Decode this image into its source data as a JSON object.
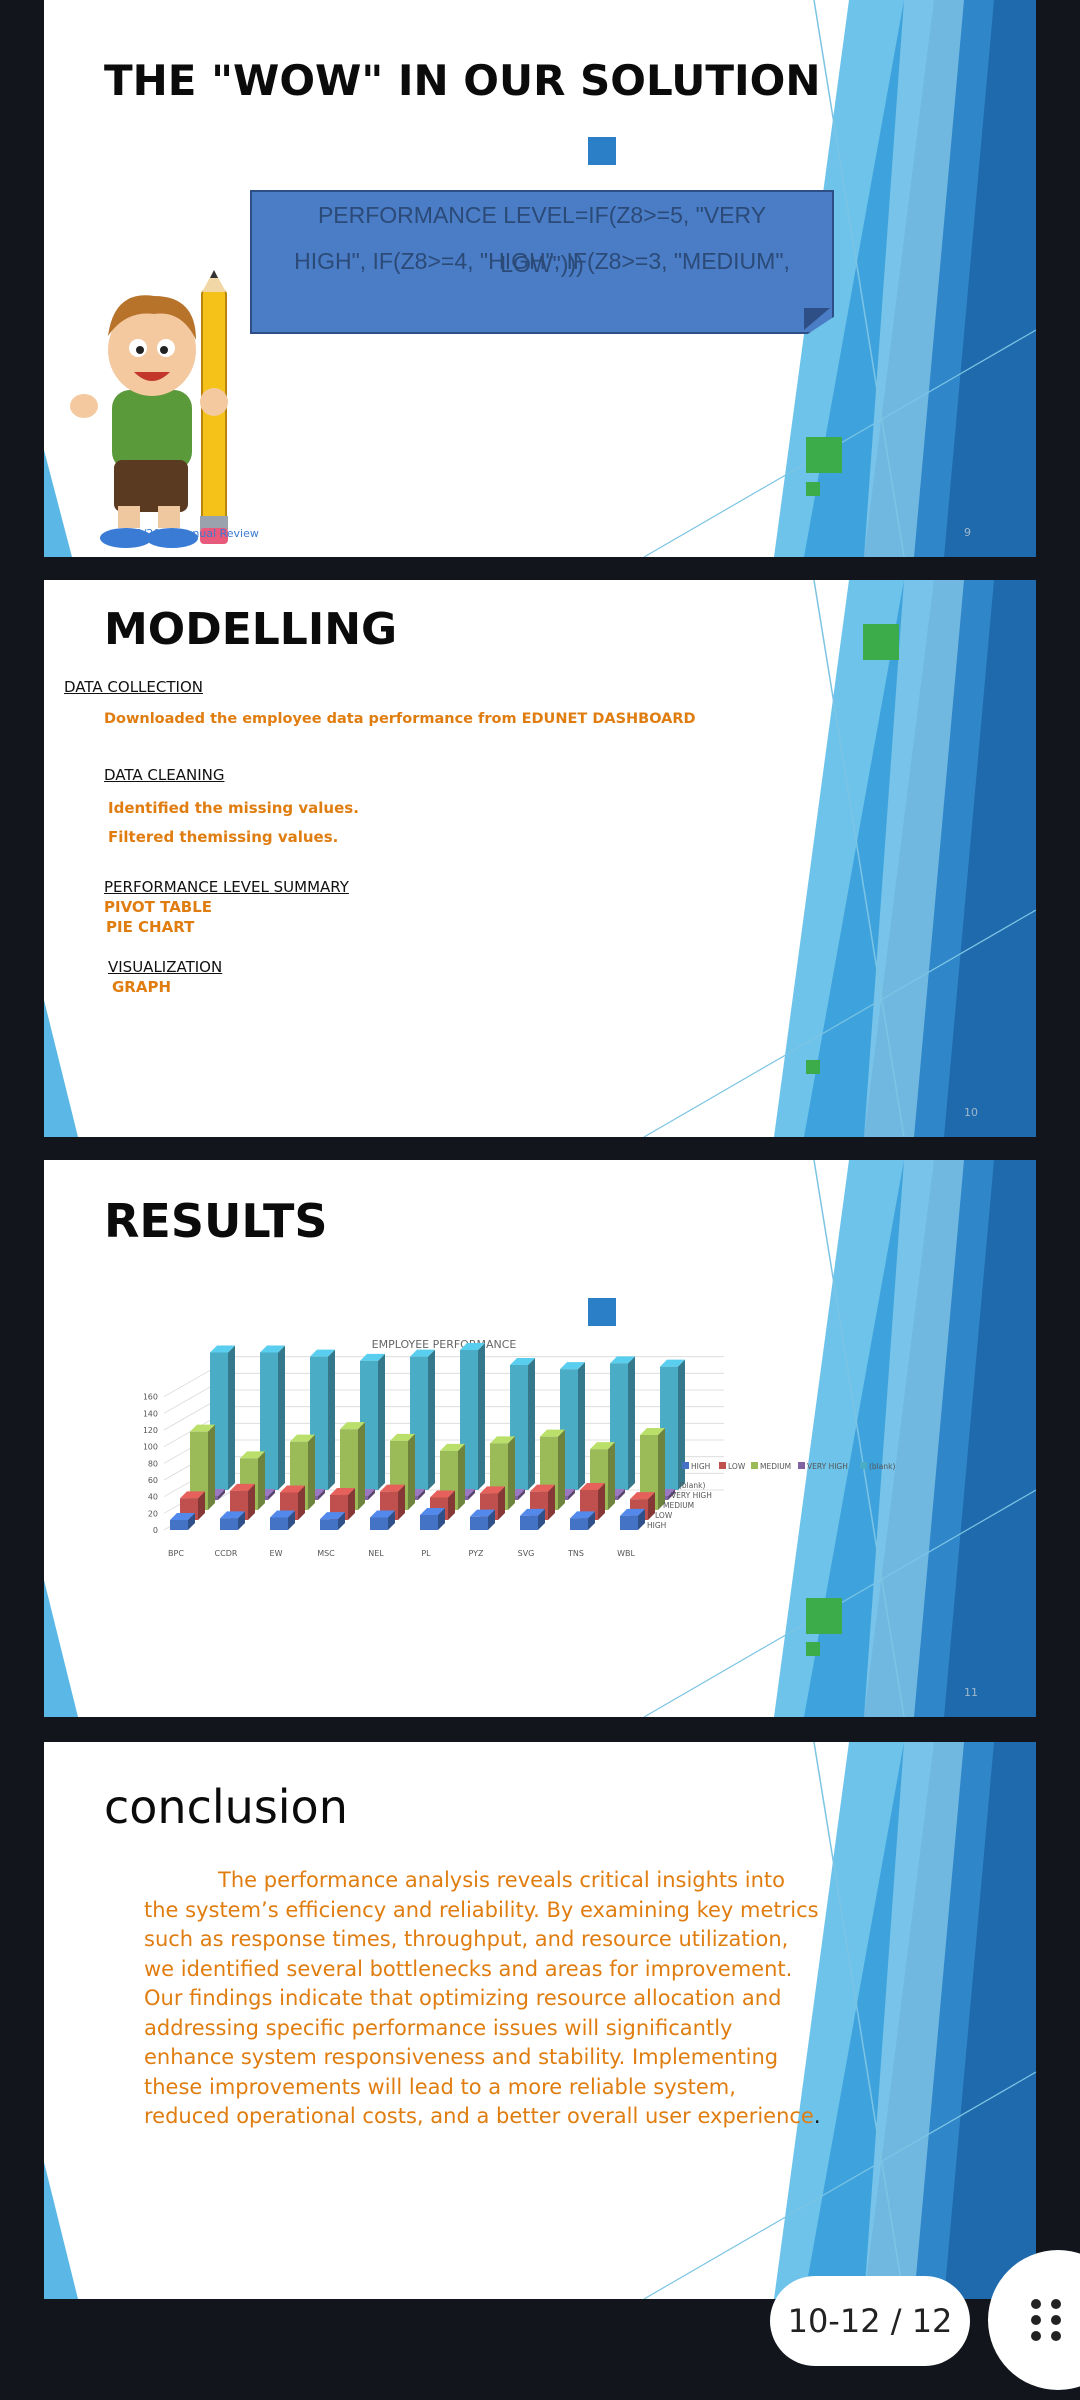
{
  "slides": [
    {
      "title": "THE \"WOW\" IN OUR SOLUTION",
      "formula_lines": [
        "PERFORMANCE LEVEL=IF(Z8>=5, \"VERY",
        "HIGH\", IF(Z8>=4, \"HIGH\", IF(Z8>=3, \"MEDIUM\",",
        "LOW\")))"
      ],
      "date_text": "3/21/2024 Annual Review",
      "slide_number": "9",
      "illustration": "cartoon-boy-with-pencil"
    },
    {
      "title": "MODELLING",
      "sections": [
        {
          "heading": "DATA COLLECTION",
          "items": [
            "Downloaded the employee data performance from EDUNET DASHBOARD"
          ]
        },
        {
          "heading": "DATA CLEANING",
          "items": [
            "Identified the missing values.",
            "Filtered themissing values."
          ]
        },
        {
          "heading": "PERFORMANCE LEVEL SUMMARY",
          "items": [
            "PIVOT TABLE",
            "PIE CHART"
          ]
        },
        {
          "heading": "VISUALIZATION",
          "items": [
            "GRAPH"
          ]
        }
      ],
      "slide_number": "10"
    },
    {
      "title": "RESULTS",
      "slide_number": "11"
    },
    {
      "title": "conclusion",
      "paragraph": "The performance analysis reveals critical insights into the system’s efficiency and reliability. By examining key metrics such as response times, throughput, and resource utilization, we identified several bottlenecks and areas for improvement. Our findings indicate that optimizing resource allocation and addressing specific performance issues will significantly enhance system responsiveness and stability. Implementing these improvements will lead to a more reliable system, reduced operational costs, and a better overall user experience",
      "end_mark": "."
    }
  ],
  "chart_data": {
    "type": "bar",
    "title": "EMPLOYEE PERFORMANCE",
    "categories": [
      "BPC",
      "CCDR",
      "EW",
      "MSC",
      "NEL",
      "PL",
      "PYZ",
      "SVG",
      "TNS",
      "WBL"
    ],
    "series": [
      {
        "name": "HIGH",
        "color": "#4472c4",
        "values": [
          12,
          14,
          15,
          13,
          15,
          18,
          16,
          17,
          14,
          17
        ]
      },
      {
        "name": "LOW",
        "color": "#c0504d",
        "values": [
          26,
          35,
          33,
          30,
          34,
          27,
          32,
          34,
          36,
          25
        ]
      },
      {
        "name": "MEDIUM",
        "color": "#9bbb59",
        "values": [
          94,
          62,
          82,
          97,
          83,
          71,
          80,
          88,
          73,
          90
        ]
      },
      {
        "name": "VERY HIGH",
        "color": "#8064a2",
        "values": [
          0,
          0,
          0,
          0,
          0,
          0,
          0,
          0,
          0,
          0
        ]
      },
      {
        "name": "(blank)",
        "color": "#4bacc6",
        "values": [
          165,
          165,
          160,
          155,
          160,
          168,
          150,
          145,
          152,
          148
        ]
      }
    ],
    "depth_labels": [
      "(blank)",
      "VERY HIGH",
      "MEDIUM",
      "LOW",
      "HIGH"
    ],
    "yticks": [
      0,
      20,
      40,
      60,
      80,
      100,
      120,
      140,
      160
    ],
    "ylim": [
      0,
      180
    ],
    "legend": "right",
    "grid": true
  },
  "viewer": {
    "page_indicator": "10-12 / 12"
  },
  "colors": {
    "accent_green": "#3cab4a",
    "accent_blue": "#2b7fc6",
    "text_orange": "#e07d10"
  }
}
